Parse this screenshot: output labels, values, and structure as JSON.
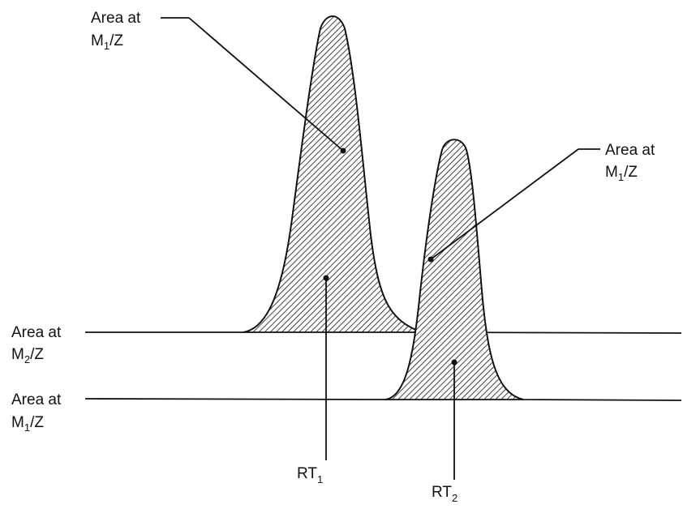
{
  "labels": {
    "peak1_top": {
      "line1": "Area at",
      "main": "M",
      "sub": "1",
      "tail": "/Z"
    },
    "peak2_right": {
      "line1": "Area at",
      "main": "M",
      "sub": "1",
      "tail": "/Z"
    },
    "baseline_upper": {
      "line1": "Area at",
      "main": "M",
      "sub": "2",
      "tail": "/Z"
    },
    "baseline_lower": {
      "line1": "Area at",
      "main": "M",
      "sub": "1",
      "tail": "/Z"
    },
    "rt1": {
      "main": "RT",
      "sub": "1"
    },
    "rt2": {
      "main": "RT",
      "sub": "2"
    }
  },
  "colors": {
    "ink": "#111111",
    "background": "#ffffff"
  }
}
